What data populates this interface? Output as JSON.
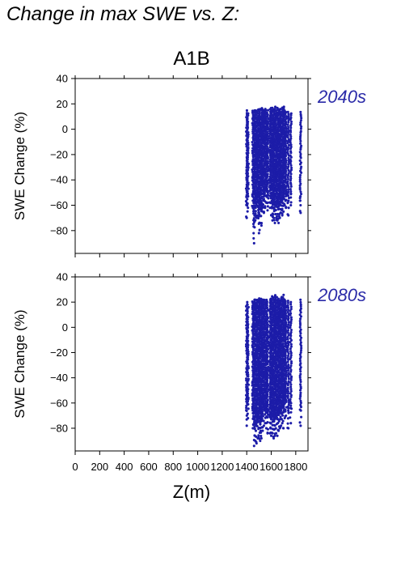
{
  "title": "Change in max SWE vs. Z:",
  "colors": {
    "points": "#1c1ca8",
    "period_label": "#2a2aa8",
    "axes": "#000000"
  },
  "chart_data": [
    {
      "type": "scatter",
      "scenario": "A1B",
      "period": "2040s",
      "ylabel": "SWE Change (%)",
      "xlabel": "",
      "xlim": [
        0,
        1900
      ],
      "ylim": [
        -98,
        40
      ],
      "yticks": [
        40,
        20,
        0,
        -20,
        -40,
        -60,
        -80
      ],
      "show_x_tick_labels": false,
      "columns": [
        {
          "x": 1400,
          "ymin": -70,
          "ymax": 15
        },
        {
          "x": 1410,
          "ymin": -62,
          "ymax": 13
        },
        {
          "x": 1450,
          "ymin": -62,
          "ymax": 15
        },
        {
          "x": 1460,
          "ymin": -90,
          "ymax": 15
        },
        {
          "x": 1470,
          "ymin": -72,
          "ymax": 15
        },
        {
          "x": 1480,
          "ymin": -70,
          "ymax": 15
        },
        {
          "x": 1490,
          "ymin": -68,
          "ymax": 16
        },
        {
          "x": 1500,
          "ymin": -82,
          "ymax": 16
        },
        {
          "x": 1510,
          "ymin": -74,
          "ymax": 16
        },
        {
          "x": 1520,
          "ymin": -76,
          "ymax": 17
        },
        {
          "x": 1530,
          "ymin": -60,
          "ymax": 16
        },
        {
          "x": 1540,
          "ymin": -66,
          "ymax": 15
        },
        {
          "x": 1550,
          "ymin": -62,
          "ymax": 16
        },
        {
          "x": 1560,
          "ymin": -58,
          "ymax": 15
        },
        {
          "x": 1570,
          "ymin": -64,
          "ymax": 15
        },
        {
          "x": 1590,
          "ymin": -62,
          "ymax": 16
        },
        {
          "x": 1600,
          "ymin": -68,
          "ymax": 17
        },
        {
          "x": 1610,
          "ymin": -72,
          "ymax": 17
        },
        {
          "x": 1620,
          "ymin": -70,
          "ymax": 16
        },
        {
          "x": 1630,
          "ymin": -74,
          "ymax": 18
        },
        {
          "x": 1640,
          "ymin": -70,
          "ymax": 15
        },
        {
          "x": 1650,
          "ymin": -72,
          "ymax": 17
        },
        {
          "x": 1660,
          "ymin": -74,
          "ymax": 16
        },
        {
          "x": 1670,
          "ymin": -70,
          "ymax": 15
        },
        {
          "x": 1680,
          "ymin": -66,
          "ymax": 16
        },
        {
          "x": 1690,
          "ymin": -68,
          "ymax": 17
        },
        {
          "x": 1700,
          "ymin": -65,
          "ymax": 18
        },
        {
          "x": 1710,
          "ymin": -60,
          "ymax": 15
        },
        {
          "x": 1720,
          "ymin": -62,
          "ymax": 14
        },
        {
          "x": 1740,
          "ymin": -68,
          "ymax": 14
        },
        {
          "x": 1760,
          "ymin": -60,
          "ymax": 13
        },
        {
          "x": 1840,
          "ymin": -66,
          "ymax": 14
        }
      ]
    },
    {
      "type": "scatter",
      "scenario": "",
      "period": "2080s",
      "ylabel": "SWE Change (%)",
      "xlabel": "Z(m)",
      "xlim": [
        0,
        1900
      ],
      "ylim": [
        -98,
        40
      ],
      "yticks": [
        40,
        20,
        0,
        -20,
        -40,
        -60,
        -80
      ],
      "xticks": [
        0,
        200,
        400,
        600,
        800,
        1000,
        1200,
        1400,
        1600,
        1800
      ],
      "show_x_tick_labels": true,
      "columns": [
        {
          "x": 1400,
          "ymin": -78,
          "ymax": 20
        },
        {
          "x": 1410,
          "ymin": -72,
          "ymax": 18
        },
        {
          "x": 1450,
          "ymin": -80,
          "ymax": 21
        },
        {
          "x": 1460,
          "ymin": -94,
          "ymax": 22
        },
        {
          "x": 1470,
          "ymin": -90,
          "ymax": 22
        },
        {
          "x": 1480,
          "ymin": -92,
          "ymax": 22
        },
        {
          "x": 1490,
          "ymin": -88,
          "ymax": 22
        },
        {
          "x": 1500,
          "ymin": -88,
          "ymax": 23
        },
        {
          "x": 1510,
          "ymin": -90,
          "ymax": 22
        },
        {
          "x": 1520,
          "ymin": -88,
          "ymax": 23
        },
        {
          "x": 1530,
          "ymin": -82,
          "ymax": 22
        },
        {
          "x": 1540,
          "ymin": -78,
          "ymax": 22
        },
        {
          "x": 1550,
          "ymin": -76,
          "ymax": 22
        },
        {
          "x": 1560,
          "ymin": -80,
          "ymax": 22
        },
        {
          "x": 1570,
          "ymin": -84,
          "ymax": 21
        },
        {
          "x": 1590,
          "ymin": -84,
          "ymax": 22
        },
        {
          "x": 1600,
          "ymin": -86,
          "ymax": 23
        },
        {
          "x": 1610,
          "ymin": -84,
          "ymax": 25
        },
        {
          "x": 1620,
          "ymin": -88,
          "ymax": 24
        },
        {
          "x": 1630,
          "ymin": -86,
          "ymax": 26
        },
        {
          "x": 1640,
          "ymin": -84,
          "ymax": 23
        },
        {
          "x": 1650,
          "ymin": -86,
          "ymax": 24
        },
        {
          "x": 1660,
          "ymin": -82,
          "ymax": 23
        },
        {
          "x": 1670,
          "ymin": -80,
          "ymax": 22
        },
        {
          "x": 1680,
          "ymin": -78,
          "ymax": 23
        },
        {
          "x": 1690,
          "ymin": -76,
          "ymax": 24
        },
        {
          "x": 1700,
          "ymin": -80,
          "ymax": 26
        },
        {
          "x": 1710,
          "ymin": -72,
          "ymax": 22
        },
        {
          "x": 1720,
          "ymin": -70,
          "ymax": 21
        },
        {
          "x": 1740,
          "ymin": -80,
          "ymax": 21
        },
        {
          "x": 1760,
          "ymin": -76,
          "ymax": 20
        },
        {
          "x": 1840,
          "ymin": -78,
          "ymax": 22
        }
      ]
    }
  ]
}
